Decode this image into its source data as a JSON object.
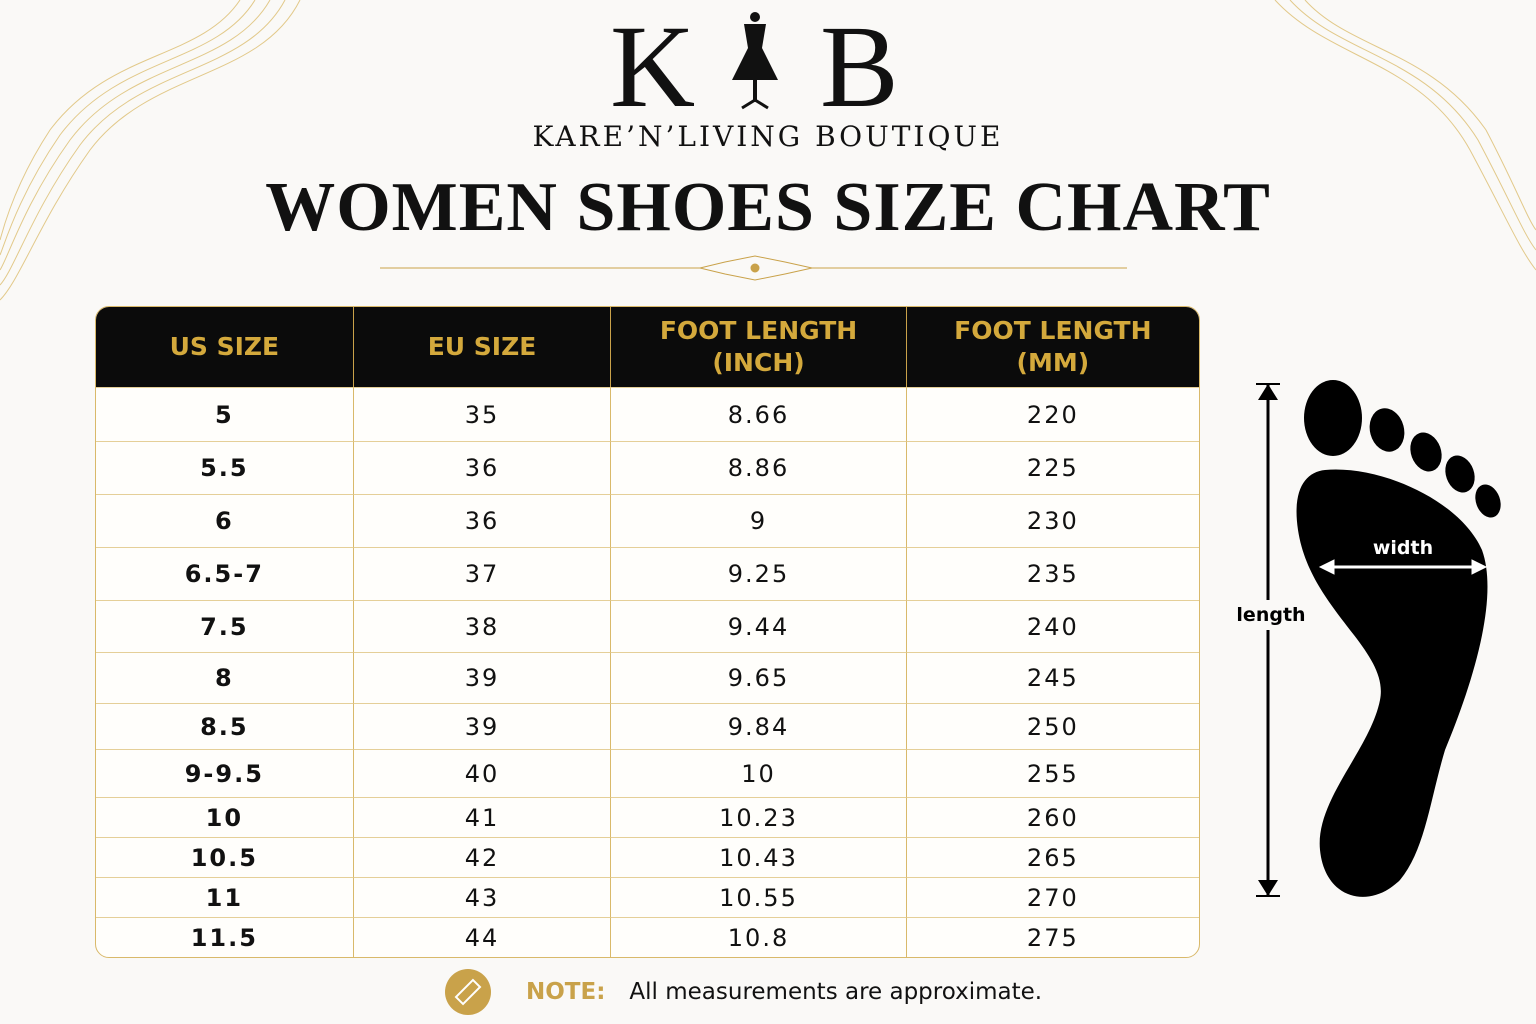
{
  "logo": {
    "left_letter": "K",
    "right_letter": "B",
    "brand": "KARE’N’LIVING BOUTIQUE"
  },
  "title": "WOMEN SHOES SIZE CHART",
  "table": {
    "headers": [
      "US SIZE",
      "EU SIZE",
      "FOOT LENGTH (INCH)",
      "FOOT LENGTH (MM)"
    ],
    "rows": [
      [
        "5",
        "35",
        "8.66",
        "220"
      ],
      [
        "5.5",
        "36",
        "8.86",
        "225"
      ],
      [
        "6",
        "36",
        "9",
        "230"
      ],
      [
        "6.5-7",
        "37",
        "9.25",
        "235"
      ],
      [
        "7.5",
        "38",
        "9.44",
        "240"
      ],
      [
        "8",
        "39",
        "9.65",
        "245"
      ],
      [
        "8.5",
        "39",
        "9.84",
        "250"
      ],
      [
        "9-9.5",
        "40",
        "10",
        "255"
      ],
      [
        "10",
        "41",
        "10.23",
        "260"
      ],
      [
        "10.5",
        "42",
        "10.43",
        "265"
      ],
      [
        "11",
        "43",
        "10.55",
        "270"
      ],
      [
        "11.5",
        "44",
        "10.8",
        "275"
      ]
    ]
  },
  "diagram": {
    "width_label": "width",
    "length_label": "length"
  },
  "note": {
    "label": "NOTE:",
    "text": "All measurements are approximate."
  }
}
